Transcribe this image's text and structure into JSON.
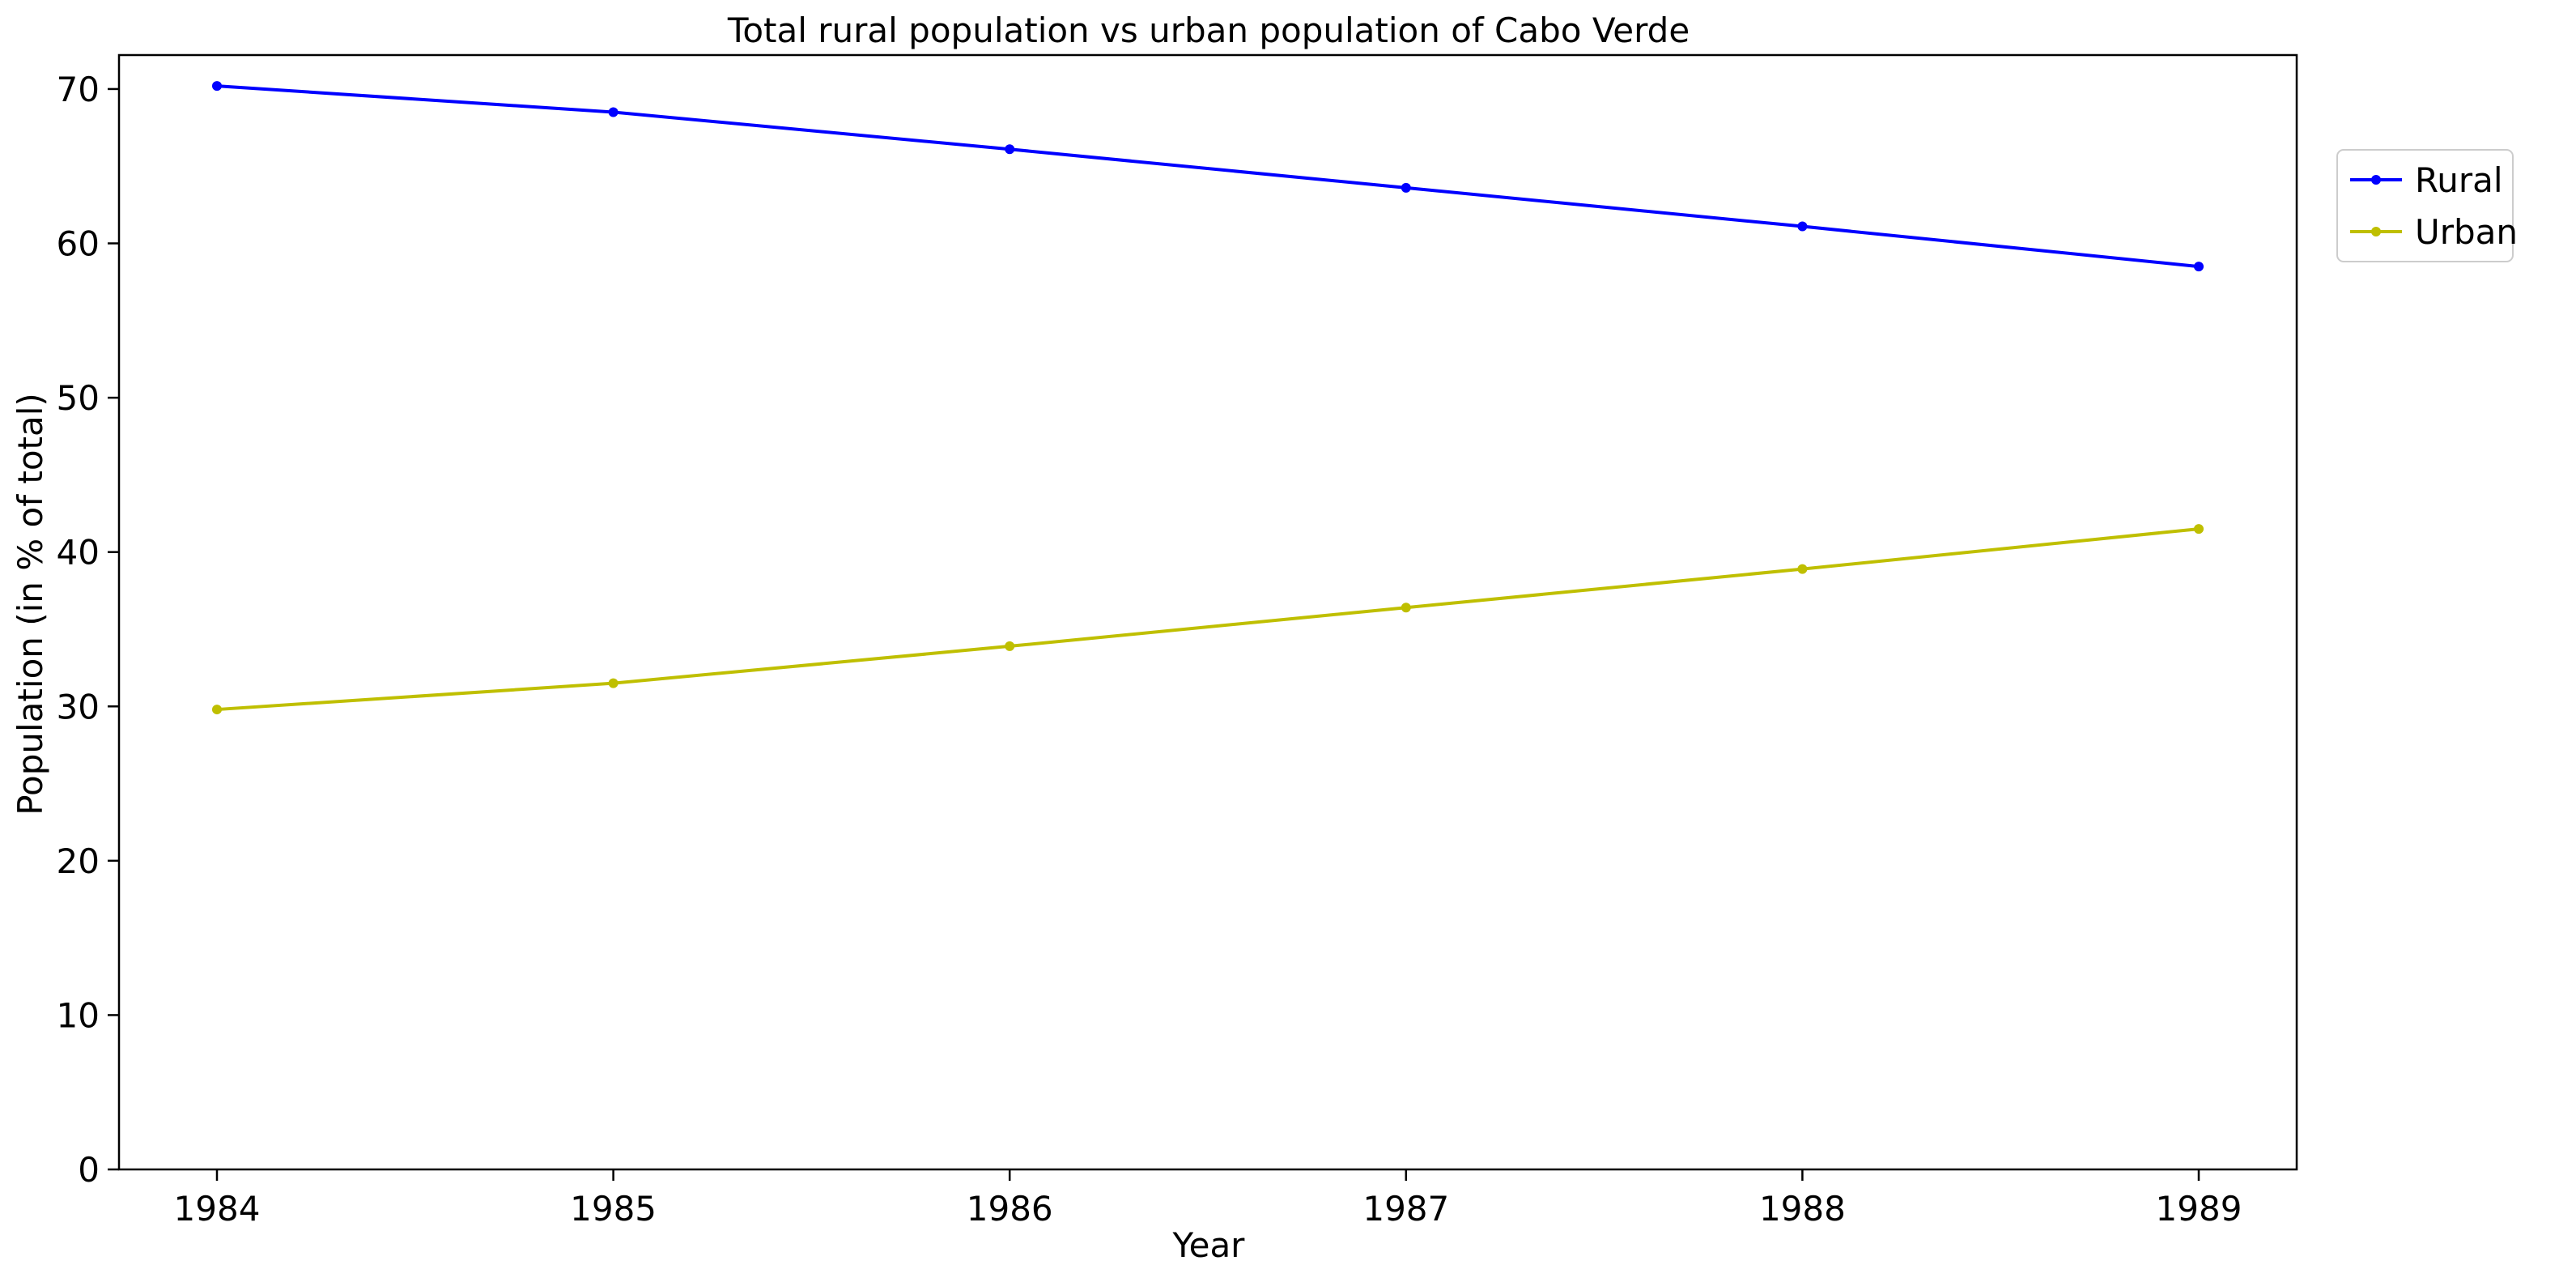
{
  "chart_data": {
    "type": "line",
    "title": "Total rural population vs urban population of Cabo Verde",
    "xlabel": "Year",
    "ylabel": "Population (in % of total)",
    "x": [
      "1984",
      "1985",
      "1986",
      "1987",
      "1988",
      "1989"
    ],
    "ylim": [
      0,
      72.2
    ],
    "yticks": [
      "0",
      "10",
      "20",
      "30",
      "40",
      "50",
      "60",
      "70"
    ],
    "grid": false,
    "legend_position": "outside-top-right",
    "series": [
      {
        "name": "Rural",
        "color": "#0000ff",
        "values": [
          70.2,
          68.5,
          66.1,
          63.6,
          61.1,
          58.5
        ]
      },
      {
        "name": "Urban",
        "color": "#bfbf00",
        "values": [
          29.8,
          31.5,
          33.9,
          36.4,
          38.9,
          41.5
        ]
      }
    ]
  }
}
